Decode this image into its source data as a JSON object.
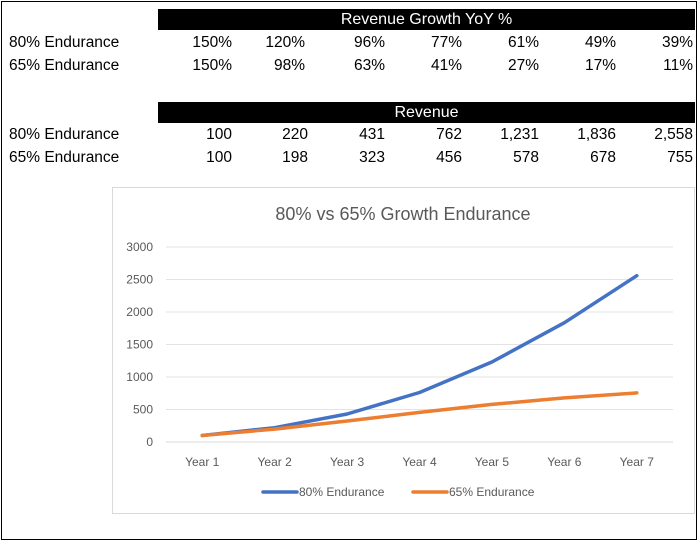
{
  "growth_table": {
    "header": "Revenue Growth YoY %",
    "rows": [
      {
        "label": "80% Endurance",
        "values": [
          "150%",
          "120%",
          "96%",
          "77%",
          "61%",
          "49%",
          "39%"
        ]
      },
      {
        "label": "65% Endurance",
        "values": [
          "150%",
          "98%",
          "63%",
          "41%",
          "27%",
          "17%",
          "11%"
        ]
      }
    ]
  },
  "revenue_table": {
    "header": "Revenue",
    "rows": [
      {
        "label": "80% Endurance",
        "values": [
          "100",
          "220",
          "431",
          "762",
          "1,231",
          "1,836",
          "2,558"
        ]
      },
      {
        "label": "65% Endurance",
        "values": [
          "100",
          "198",
          "323",
          "456",
          "578",
          "678",
          "755"
        ]
      }
    ]
  },
  "chart_data": {
    "type": "line",
    "title": "80% vs 65% Growth Endurance",
    "categories": [
      "Year 1",
      "Year 2",
      "Year 3",
      "Year 4",
      "Year 5",
      "Year 6",
      "Year 7"
    ],
    "series": [
      {
        "name": "80% Endurance",
        "color": "#4472c4",
        "values": [
          100,
          220,
          431,
          762,
          1231,
          1836,
          2558
        ]
      },
      {
        "name": "65% Endurance",
        "color": "#ed7d31",
        "values": [
          100,
          198,
          323,
          456,
          578,
          678,
          755
        ]
      }
    ],
    "yticks": [
      0,
      500,
      1000,
      1500,
      2000,
      2500,
      3000
    ],
    "ylim": [
      0,
      3000
    ],
    "grid": true,
    "legend": "bottom"
  }
}
